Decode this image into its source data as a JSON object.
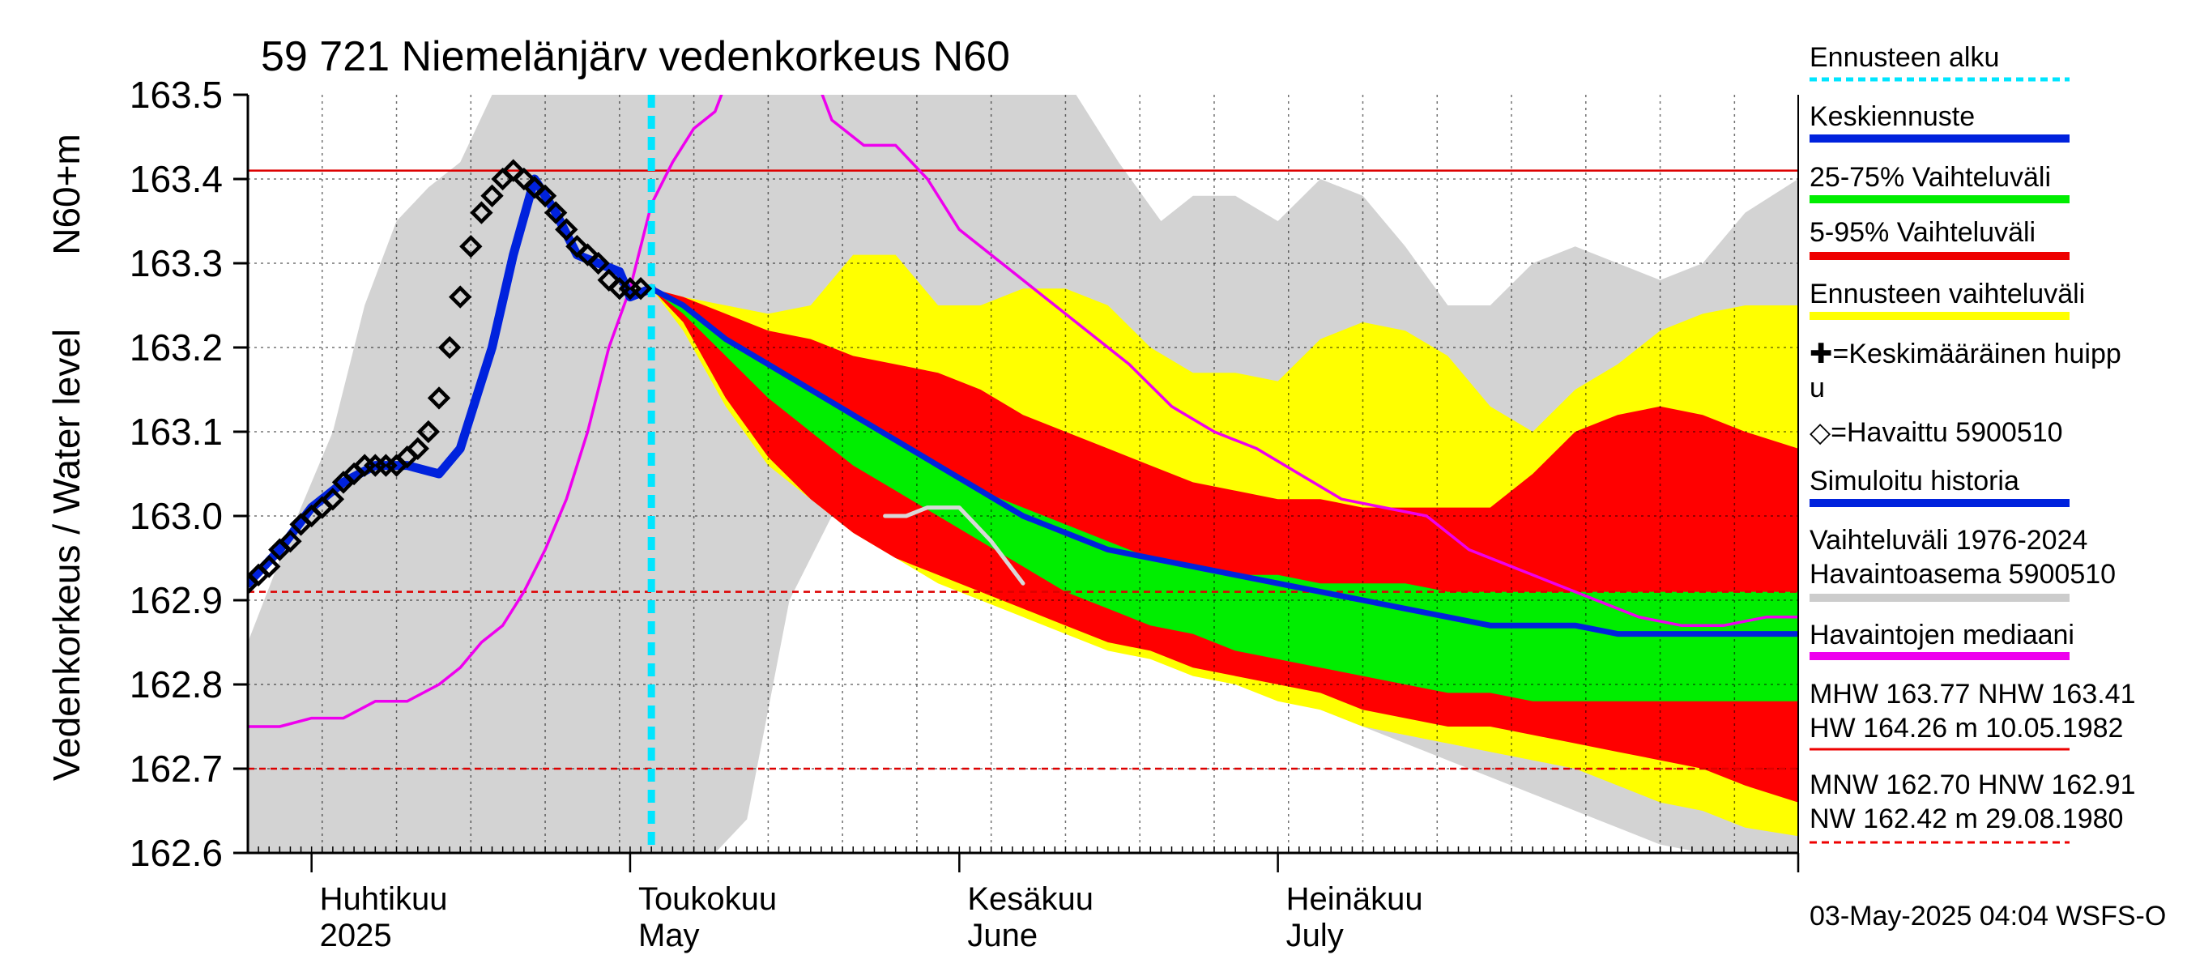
{
  "chart_data": {
    "type": "line",
    "title": "59 721 Niemelänjärv vedenkorkeus N60",
    "ylabel_fi": "Vedenkorkeus / Water level",
    "ylabel_unit": "N60+m",
    "ylim": [
      162.6,
      163.5
    ],
    "y_ticks": [
      "163.5",
      "163.4",
      "163.3",
      "163.2",
      "163.1",
      "163.0",
      "162.9",
      "162.8",
      "162.7",
      "162.6"
    ],
    "x_start": "2025-03-26",
    "x_end": "2025-08-19",
    "month_labels": [
      {
        "fi": "Huhtikuu",
        "en": "2025",
        "date": "2025-04-01"
      },
      {
        "fi": "Toukokuu",
        "en": "May",
        "date": "2025-05-01"
      },
      {
        "fi": "Kesäkuu",
        "en": "June",
        "date": "2025-06-01"
      },
      {
        "fi": "Heinäkuu",
        "en": "July",
        "date": "2025-07-01"
      }
    ],
    "forecast_start": "2025-05-03",
    "reference_lines": [
      {
        "name": "NHW",
        "value": 163.41
      },
      {
        "name": "HNW",
        "value": 162.91
      },
      {
        "name": "MNW",
        "value": 162.7
      }
    ],
    "history_range": {
      "dates": [
        "2025-03-26",
        "2025-03-30",
        "2025-04-03",
        "2025-04-06",
        "2025-04-09",
        "2025-04-12",
        "2025-04-15",
        "2025-04-18",
        "2025-04-20",
        "2025-04-23",
        "2025-04-27",
        "2025-04-30",
        "2025-05-03",
        "2025-05-06",
        "2025-05-09",
        "2025-05-12",
        "2025-05-16",
        "2025-05-20",
        "2025-05-25",
        "2025-05-30",
        "2025-06-04",
        "2025-06-08",
        "2025-06-12",
        "2025-06-16",
        "2025-06-20",
        "2025-06-23",
        "2025-06-27",
        "2025-07-01",
        "2025-07-05",
        "2025-07-09",
        "2025-07-13",
        "2025-07-17",
        "2025-07-21",
        "2025-07-25",
        "2025-07-29",
        "2025-08-02",
        "2025-08-06",
        "2025-08-10",
        "2025-08-14",
        "2025-08-19"
      ],
      "upper": [
        162.85,
        162.98,
        163.1,
        163.25,
        163.35,
        163.39,
        163.42,
        163.5,
        163.5,
        163.5,
        163.5,
        163.5,
        163.5,
        163.5,
        163.5,
        163.5,
        163.5,
        163.5,
        163.5,
        163.5,
        163.5,
        163.5,
        163.5,
        163.42,
        163.35,
        163.38,
        163.38,
        163.35,
        163.4,
        163.38,
        163.32,
        163.25,
        163.25,
        163.3,
        163.32,
        163.3,
        163.28,
        163.3,
        163.36,
        163.4
      ],
      "lower": [
        162.6,
        162.6,
        162.6,
        162.6,
        162.6,
        162.6,
        162.6,
        162.6,
        162.6,
        162.6,
        162.6,
        162.6,
        162.6,
        162.6,
        162.6,
        162.64,
        162.9,
        163.0,
        162.98,
        162.96,
        162.93,
        162.9,
        162.88,
        162.85,
        162.83,
        162.82,
        162.8,
        162.79,
        162.77,
        162.75,
        162.73,
        162.71,
        162.69,
        162.67,
        162.65,
        162.63,
        162.61,
        162.6,
        162.6,
        162.6
      ]
    },
    "forecast_bands": {
      "dates": [
        "2025-05-03",
        "2025-05-06",
        "2025-05-10",
        "2025-05-14",
        "2025-05-18",
        "2025-05-22",
        "2025-05-26",
        "2025-05-30",
        "2025-06-03",
        "2025-06-07",
        "2025-06-11",
        "2025-06-15",
        "2025-06-19",
        "2025-06-23",
        "2025-06-27",
        "2025-07-01",
        "2025-07-05",
        "2025-07-09",
        "2025-07-13",
        "2025-07-17",
        "2025-07-21",
        "2025-07-25",
        "2025-07-29",
        "2025-08-02",
        "2025-08-06",
        "2025-08-10",
        "2025-08-14",
        "2025-08-19"
      ],
      "ennuste_upper": [
        163.27,
        163.26,
        163.25,
        163.24,
        163.25,
        163.31,
        163.31,
        163.25,
        163.25,
        163.27,
        163.27,
        163.25,
        163.2,
        163.17,
        163.17,
        163.16,
        163.21,
        163.23,
        163.22,
        163.19,
        163.13,
        163.1,
        163.15,
        163.18,
        163.22,
        163.24,
        163.25,
        163.25
      ],
      "p95": [
        163.27,
        163.26,
        163.24,
        163.22,
        163.21,
        163.19,
        163.18,
        163.17,
        163.15,
        163.12,
        163.1,
        163.08,
        163.06,
        163.04,
        163.03,
        163.02,
        163.02,
        163.01,
        163.01,
        163.01,
        163.01,
        163.05,
        163.1,
        163.12,
        163.13,
        163.12,
        163.1,
        163.08
      ],
      "p75": [
        163.27,
        163.25,
        163.21,
        163.18,
        163.15,
        163.12,
        163.09,
        163.06,
        163.03,
        163.01,
        162.99,
        162.97,
        162.95,
        162.94,
        162.93,
        162.93,
        162.92,
        162.92,
        162.92,
        162.91,
        162.91,
        162.91,
        162.91,
        162.91,
        162.91,
        162.91,
        162.91,
        162.91
      ],
      "p25": [
        163.27,
        163.24,
        163.19,
        163.14,
        163.1,
        163.06,
        163.03,
        163.0,
        162.97,
        162.94,
        162.91,
        162.89,
        162.87,
        162.86,
        162.84,
        162.83,
        162.82,
        162.81,
        162.8,
        162.79,
        162.79,
        162.78,
        162.78,
        162.78,
        162.78,
        162.78,
        162.78,
        162.78
      ],
      "p5": [
        163.27,
        163.23,
        163.14,
        163.07,
        163.02,
        162.98,
        162.95,
        162.93,
        162.91,
        162.89,
        162.87,
        162.85,
        162.84,
        162.82,
        162.81,
        162.8,
        162.79,
        162.77,
        162.76,
        162.75,
        162.75,
        162.74,
        162.73,
        162.72,
        162.71,
        162.7,
        162.68,
        162.66
      ],
      "ennuste_lower": [
        163.27,
        163.22,
        163.13,
        163.06,
        163.02,
        162.98,
        162.95,
        162.92,
        162.9,
        162.88,
        162.86,
        162.84,
        162.83,
        162.81,
        162.8,
        162.78,
        162.77,
        162.75,
        162.74,
        162.73,
        162.72,
        162.71,
        162.7,
        162.68,
        162.66,
        162.65,
        162.63,
        162.62
      ]
    },
    "mean_forecast": {
      "dates": [
        "2025-05-03",
        "2025-05-06",
        "2025-05-10",
        "2025-05-14",
        "2025-05-18",
        "2025-05-22",
        "2025-05-26",
        "2025-05-30",
        "2025-06-03",
        "2025-06-07",
        "2025-06-11",
        "2025-06-15",
        "2025-06-19",
        "2025-06-23",
        "2025-06-27",
        "2025-07-01",
        "2025-07-05",
        "2025-07-09",
        "2025-07-13",
        "2025-07-17",
        "2025-07-21",
        "2025-07-25",
        "2025-07-29",
        "2025-08-02",
        "2025-08-06",
        "2025-08-10",
        "2025-08-14",
        "2025-08-19"
      ],
      "values": [
        163.27,
        163.25,
        163.21,
        163.18,
        163.15,
        163.12,
        163.09,
        163.06,
        163.03,
        163.0,
        162.98,
        162.96,
        162.95,
        162.94,
        162.93,
        162.92,
        162.91,
        162.9,
        162.89,
        162.88,
        162.87,
        162.87,
        162.87,
        162.86,
        162.86,
        162.86,
        162.86,
        162.86
      ]
    },
    "simulated_history": {
      "dates": [
        "2025-03-26",
        "2025-03-29",
        "2025-04-01",
        "2025-04-04",
        "2025-04-07",
        "2025-04-10",
        "2025-04-13",
        "2025-04-15",
        "2025-04-18",
        "2025-04-20",
        "2025-04-22",
        "2025-04-24",
        "2025-04-26",
        "2025-04-28",
        "2025-04-30",
        "2025-05-01",
        "2025-05-03"
      ],
      "values": [
        162.92,
        162.96,
        163.01,
        163.04,
        163.06,
        163.06,
        163.05,
        163.08,
        163.2,
        163.31,
        163.4,
        163.36,
        163.31,
        163.3,
        163.29,
        163.26,
        163.27
      ]
    },
    "observed": {
      "name": "Havaittu 5900510",
      "dates": [
        "2025-03-26",
        "2025-03-27",
        "2025-03-28",
        "2025-03-29",
        "2025-03-30",
        "2025-03-31",
        "2025-04-01",
        "2025-04-02",
        "2025-04-03",
        "2025-04-04",
        "2025-04-05",
        "2025-04-06",
        "2025-04-07",
        "2025-04-08",
        "2025-04-09",
        "2025-04-10",
        "2025-04-11",
        "2025-04-12",
        "2025-04-13",
        "2025-04-14",
        "2025-04-15",
        "2025-04-16",
        "2025-04-17",
        "2025-04-18",
        "2025-04-19",
        "2025-04-20",
        "2025-04-21",
        "2025-04-22",
        "2025-04-23",
        "2025-04-24",
        "2025-04-25",
        "2025-04-26",
        "2025-04-27",
        "2025-04-28",
        "2025-04-29",
        "2025-04-30",
        "2025-05-01",
        "2025-05-02"
      ],
      "values": [
        162.92,
        162.93,
        162.94,
        162.96,
        162.97,
        162.99,
        163.0,
        163.01,
        163.02,
        163.04,
        163.05,
        163.06,
        163.06,
        163.06,
        163.06,
        163.07,
        163.08,
        163.1,
        163.14,
        163.2,
        163.26,
        163.32,
        163.36,
        163.38,
        163.4,
        163.41,
        163.4,
        163.39,
        163.38,
        163.36,
        163.34,
        163.32,
        163.31,
        163.3,
        163.28,
        163.27,
        163.27,
        163.27
      ]
    },
    "median": {
      "name": "Havaintojen mediaani",
      "dates": [
        "2025-03-26",
        "2025-03-29",
        "2025-04-01",
        "2025-04-04",
        "2025-04-07",
        "2025-04-10",
        "2025-04-13",
        "2025-04-15",
        "2025-04-17",
        "2025-04-19",
        "2025-04-21",
        "2025-04-23",
        "2025-04-25",
        "2025-04-27",
        "2025-04-29",
        "2025-05-01",
        "2025-05-03",
        "2025-05-05",
        "2025-05-07",
        "2025-05-09",
        "2025-05-12",
        "2025-05-14",
        "2025-05-17",
        "2025-05-20",
        "2025-05-23",
        "2025-05-26",
        "2025-05-29",
        "2025-06-01",
        "2025-06-05",
        "2025-06-09",
        "2025-06-13",
        "2025-06-17",
        "2025-06-21",
        "2025-06-25",
        "2025-06-29",
        "2025-07-03",
        "2025-07-07",
        "2025-07-11",
        "2025-07-15",
        "2025-07-19",
        "2025-07-23",
        "2025-07-27",
        "2025-07-31",
        "2025-08-04",
        "2025-08-08",
        "2025-08-12",
        "2025-08-16",
        "2025-08-19"
      ],
      "values": [
        162.75,
        162.75,
        162.76,
        162.76,
        162.78,
        162.78,
        162.8,
        162.82,
        162.85,
        162.87,
        162.91,
        162.96,
        163.02,
        163.1,
        163.2,
        163.27,
        163.37,
        163.42,
        163.46,
        163.48,
        163.58,
        163.62,
        163.57,
        163.47,
        163.44,
        163.44,
        163.4,
        163.34,
        163.3,
        163.26,
        163.22,
        163.18,
        163.13,
        163.1,
        163.08,
        163.05,
        163.02,
        163.01,
        163.0,
        162.96,
        162.94,
        162.92,
        162.9,
        162.88,
        162.87,
        162.87,
        162.88,
        162.88
      ]
    },
    "gray_line": {
      "dates": [
        "2025-05-25",
        "2025-05-27",
        "2025-05-29",
        "2025-06-01",
        "2025-06-04",
        "2025-06-07"
      ],
      "values": [
        163.0,
        163.0,
        163.01,
        163.01,
        162.97,
        162.92
      ]
    },
    "legend": [
      {
        "label": "Ennusteen alku",
        "color": "#00e5ff",
        "style": "dashed"
      },
      {
        "label": "Keskiennuste",
        "color": "#0022dd",
        "style": "line"
      },
      {
        "label": "25-75% Vaihteluväli",
        "color": "#00ee00",
        "style": "line"
      },
      {
        "label": "5-95% Vaihteluväli",
        "color": "#ee0000",
        "style": "line"
      },
      {
        "label": "Ennusteen vaihteluväli",
        "color": "#ffff00",
        "style": "line"
      },
      {
        "label": "✚=Keskimääräinen huipp",
        "label2": "u",
        "color": "#000000",
        "style": "none"
      },
      {
        "label": "◇=Havaittu 5900510",
        "color": "#000000",
        "style": "none"
      },
      {
        "label": "Simuloitu historia",
        "color": "#0022dd",
        "style": "line"
      },
      {
        "label": "Vaihteluväli 1976-2024",
        "label2": " Havaintoasema 5900510",
        "color": "#cccccc",
        "style": "line"
      },
      {
        "label": "Havaintojen mediaani",
        "color": "#ee00ee",
        "style": "line"
      },
      {
        "label": "MHW 163.77 NHW 163.41",
        "label2": "HW 164.26 m 10.05.1982",
        "color": "#ee0000",
        "style": "line"
      },
      {
        "label": "MNW 162.70 HNW 162.91",
        "label2": "NW 162.42 m 29.08.1980",
        "color": "#ee0000",
        "style": "dashed"
      }
    ],
    "footer": "03-May-2025 04:04 WSFS-O",
    "colors": {
      "history_band": "#d3d3d3",
      "ennuste": "#ffff00",
      "p5_95": "#ff0000",
      "p25_75": "#00ee00",
      "mean": "#0022dd",
      "median": "#ee00ee",
      "forecast_start": "#00e5ff",
      "ref": "#dd0000"
    }
  }
}
